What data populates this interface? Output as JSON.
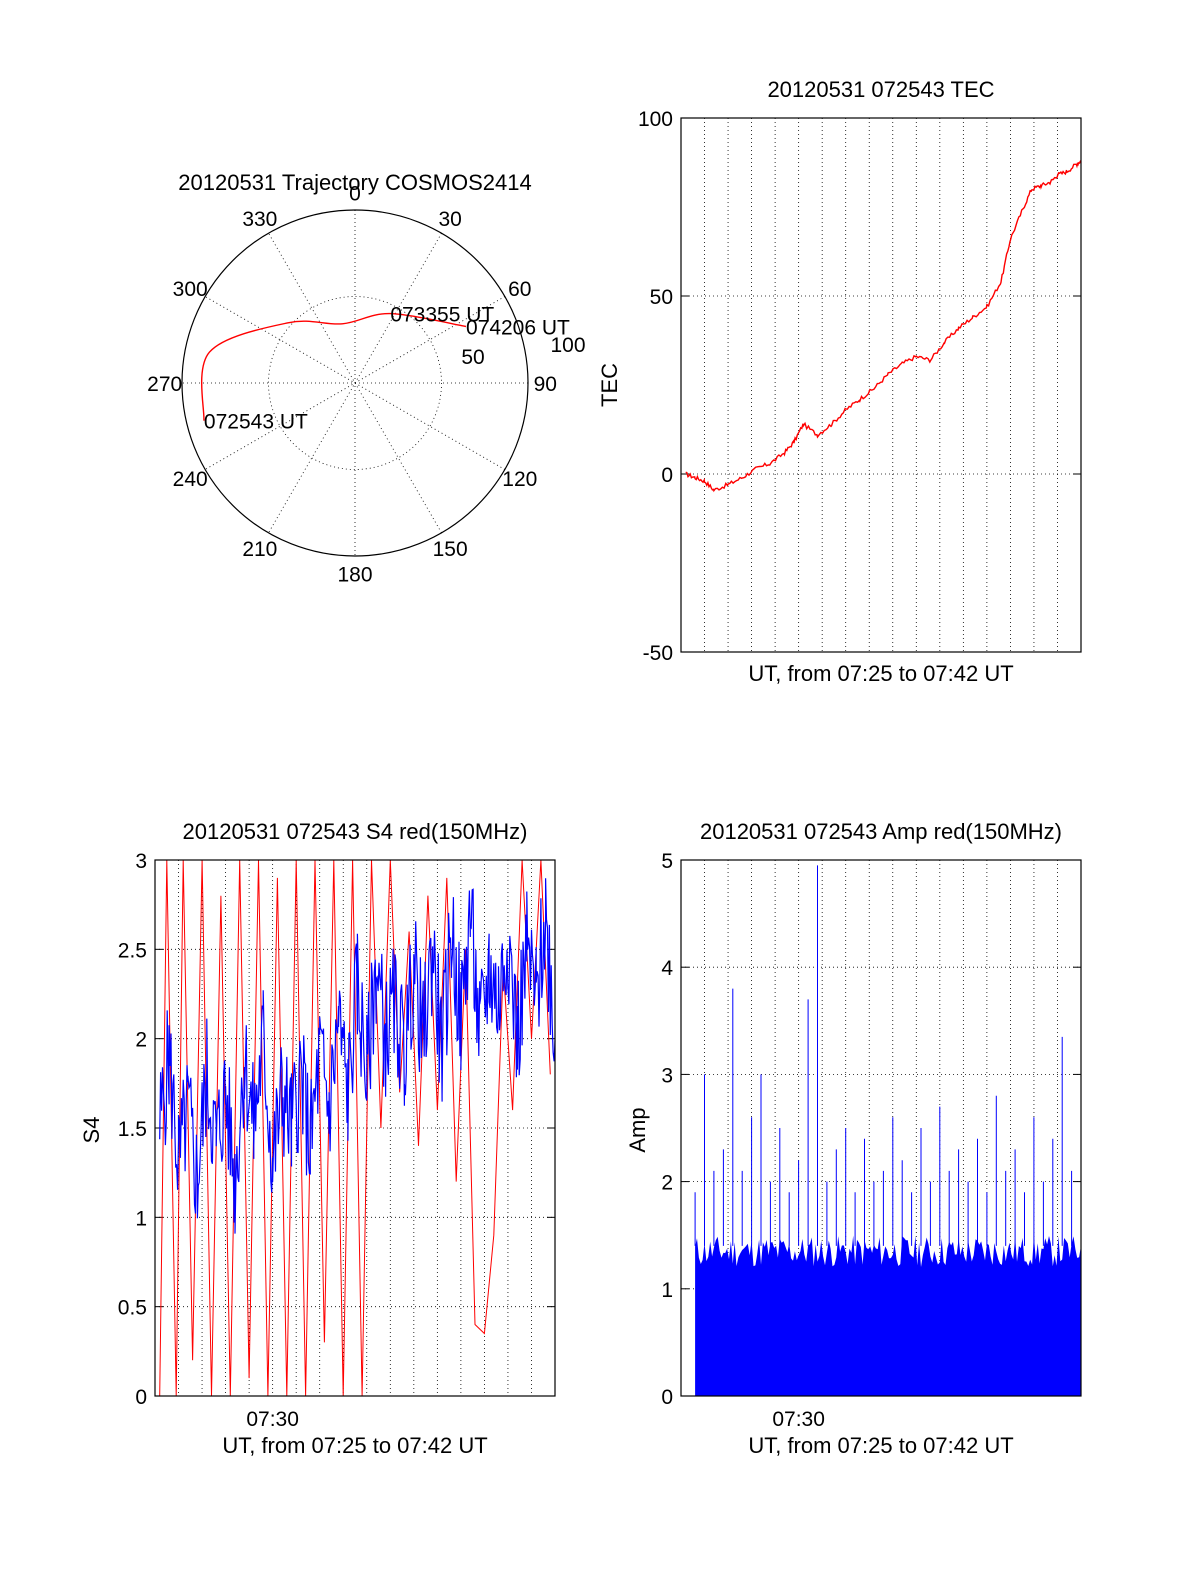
{
  "colors": {
    "red": "#ff0000",
    "blue": "#0000ff",
    "axis": "#000000"
  },
  "chart_data": [
    {
      "id": "trajectory",
      "type": "polar",
      "title": "20120531 Trajectory COSMOS2414",
      "angle_labels": [
        "0",
        "30",
        "60",
        "90",
        "120",
        "150",
        "180",
        "210",
        "240",
        "270",
        "300",
        "330"
      ],
      "radial_labels": [
        "50",
        "100"
      ],
      "rlim": [
        0,
        100
      ],
      "grid": true,
      "track": {
        "points": [
          {
            "az": 63,
            "r": 72
          },
          {
            "az": 27,
            "r": 45
          },
          {
            "az": -12,
            "r": 35
          },
          {
            "az": -48,
            "r": 52
          },
          {
            "az": -78,
            "r": 86
          },
          {
            "az": -104,
            "r": 90
          }
        ],
        "labels": [
          {
            "text": "074206 UT",
            "az": 63,
            "r": 72
          },
          {
            "text": "073355 UT",
            "az": 27,
            "r": 45
          },
          {
            "text": "072543 UT",
            "az": -104,
            "r": 90
          }
        ]
      }
    },
    {
      "id": "tec",
      "type": "line",
      "title": "20120531 072543 TEC",
      "xlabel": "UT, from 07:25 to 07:42 UT",
      "ylabel": "TEC",
      "xlim": [
        0,
        17
      ],
      "ylim": [
        -50,
        100
      ],
      "yticks": [
        "-50",
        "0",
        "50",
        "100"
      ],
      "grid": true,
      "series": [
        {
          "color": "red",
          "x": [
            0.2,
            0.6,
            1.0,
            1.4,
            2.0,
            2.6,
            3.2,
            3.8,
            4.4,
            4.8,
            5.2,
            5.8,
            6.4,
            7.0,
            7.6,
            8.2,
            8.8,
            9.4,
            10.0,
            10.6,
            11.2,
            11.8,
            12.4,
            13.0,
            13.6,
            14.0,
            14.5,
            14.9,
            15.3,
            15.7,
            16.0,
            16.4,
            16.8,
            17.0
          ],
          "y": [
            0,
            -1,
            -2,
            -4.5,
            -3,
            -1,
            1.5,
            3,
            6,
            9,
            14,
            11,
            14,
            18,
            21,
            24,
            28,
            31,
            33,
            32,
            37,
            41,
            44,
            47,
            54,
            66,
            74,
            80,
            81,
            82,
            84,
            85,
            87,
            88
          ]
        }
      ]
    },
    {
      "id": "s4",
      "type": "line",
      "title": "20120531 072543 S4 red(150MHz)",
      "xlabel": "UT, from 07:25 to 07:42 UT",
      "ylabel": "S4",
      "xlim": [
        0,
        17
      ],
      "ylim": [
        0,
        3
      ],
      "yticks": [
        "0",
        "0.5",
        "1",
        "1.5",
        "2",
        "2.5",
        "3"
      ],
      "xticks": [
        {
          "x": 5,
          "label": "07:30"
        }
      ],
      "grid": true,
      "series": [
        {
          "color": "red",
          "x": [
            0.2,
            0.5,
            0.9,
            1.2,
            1.6,
            2.0,
            2.4,
            2.8,
            3.2,
            3.6,
            4.0,
            4.4,
            4.8,
            5.2,
            5.6,
            6.0,
            6.4,
            6.8,
            7.2,
            7.6,
            8.0,
            8.4,
            8.8,
            9.2,
            9.6,
            10.0,
            10.4,
            10.8,
            11.2,
            11.6,
            12.0,
            12.4,
            12.8,
            13.2,
            13.6,
            14.0,
            14.4,
            14.8,
            15.2,
            15.6,
            16.0,
            16.4,
            16.8
          ],
          "y": [
            0,
            3,
            0,
            3,
            0.2,
            3,
            0,
            2.8,
            0,
            3,
            0.1,
            3,
            0,
            2.9,
            0,
            3,
            0,
            3,
            0.3,
            3,
            0,
            3,
            0,
            3,
            1.5,
            3,
            1.7,
            2.6,
            1.4,
            2.8,
            1.6,
            2.9,
            1.2,
            2.5,
            0.4,
            0.35,
            0.9,
            2.4,
            1.6,
            3,
            2.0,
            3,
            1.8
          ]
        },
        {
          "color": "blue",
          "x": [
            0.2,
            0.6,
            1.0,
            1.4,
            1.8,
            2.2,
            2.6,
            3.0,
            3.4,
            3.8,
            4.2,
            4.6,
            5.0,
            5.4,
            5.8,
            6.2,
            6.6,
            7.0,
            7.4,
            7.8,
            8.2,
            8.6,
            9.0,
            9.4,
            9.8,
            10.2,
            10.6,
            11.0,
            11.4,
            11.8,
            12.2,
            12.6,
            13.0,
            13.4,
            13.8,
            14.2,
            14.6,
            15.0,
            15.4,
            15.8,
            16.2,
            16.6,
            17.0
          ],
          "y": [
            1.5,
            1.9,
            1.3,
            1.6,
            1.2,
            1.8,
            1.4,
            1.7,
            1.2,
            1.9,
            1.5,
            2.0,
            1.3,
            1.7,
            1.5,
            1.8,
            1.4,
            1.9,
            1.6,
            2.1,
            1.7,
            2.3,
            1.8,
            2.4,
            2.0,
            2.2,
            1.9,
            2.4,
            2.0,
            2.5,
            1.9,
            2.6,
            2.1,
            2.7,
            2.0,
            2.4,
            2.2,
            2.6,
            2.0,
            2.5,
            2.2,
            2.7,
            2.0
          ]
        }
      ]
    },
    {
      "id": "amp",
      "type": "line",
      "title": "20120531 072543 Amp red(150MHz)",
      "xlabel": "UT, from 07:25 to 07:42 UT",
      "ylabel": "Amp",
      "xlim": [
        0,
        17
      ],
      "ylim": [
        0,
        5
      ],
      "yticks": [
        "0",
        "1",
        "2",
        "3",
        "4",
        "5"
      ],
      "xticks": [
        {
          "x": 5,
          "label": "07:30"
        }
      ],
      "grid": true,
      "series": [
        {
          "color": "blue",
          "x": [
            0.6,
            1.0,
            1.4,
            1.8,
            2.2,
            2.6,
            3.0,
            3.4,
            3.8,
            4.2,
            4.6,
            5.0,
            5.4,
            5.8,
            6.2,
            6.6,
            7.0,
            7.4,
            7.8,
            8.2,
            8.6,
            9.0,
            9.4,
            9.8,
            10.2,
            10.6,
            11.0,
            11.4,
            11.8,
            12.2,
            12.6,
            13.0,
            13.4,
            13.8,
            14.2,
            14.6,
            15.0,
            15.4,
            15.8,
            16.2,
            16.6,
            17.0
          ],
          "y": [
            1.9,
            3.0,
            2.1,
            2.3,
            3.8,
            2.1,
            2.6,
            3.0,
            2.0,
            2.5,
            1.9,
            2.2,
            3.7,
            4.95,
            2.0,
            2.3,
            2.5,
            1.9,
            2.4,
            2.0,
            2.1,
            2.6,
            2.2,
            1.9,
            2.5,
            2.0,
            2.7,
            2.1,
            2.3,
            2.0,
            2.4,
            1.9,
            2.8,
            2.1,
            2.3,
            1.9,
            2.6,
            2.0,
            2.4,
            3.35,
            2.1,
            1.8
          ]
        }
      ]
    }
  ]
}
